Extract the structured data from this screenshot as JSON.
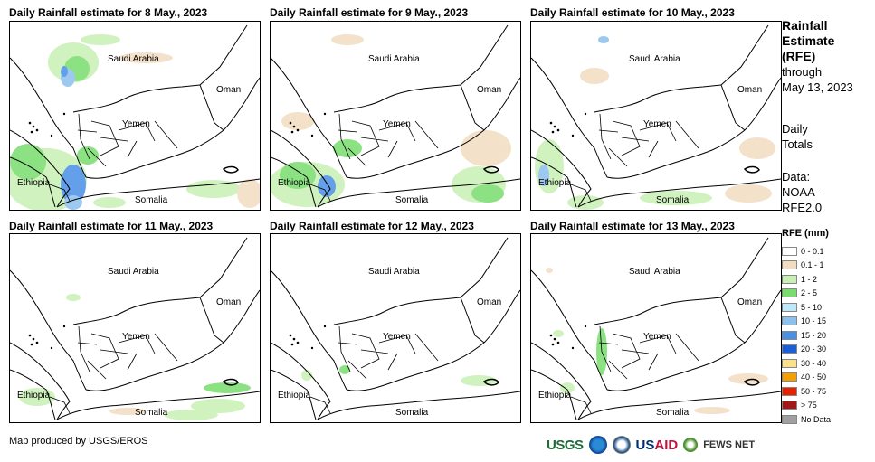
{
  "panels": [
    {
      "title": "Daily Rainfall estimate for 8 May., 2023"
    },
    {
      "title": "Daily Rainfall estimate for 9 May., 2023"
    },
    {
      "title": "Daily Rainfall estimate for 10 May., 2023"
    },
    {
      "title": "Daily Rainfall estimate for 11 May., 2023"
    },
    {
      "title": "Daily Rainfall estimate for 12 May., 2023"
    },
    {
      "title": "Daily Rainfall estimate for 13 May., 2023"
    }
  ],
  "map_labels": {
    "saudi": "Saudi Arabia",
    "oman": "Oman",
    "yemen": "Yemen",
    "ethiopia": "Ethiopia",
    "somalia": "Somalia"
  },
  "side": {
    "title1": "Rainfall",
    "title2": "Estimate",
    "title3": "(RFE)",
    "through": "through",
    "date": "May 13, 2023",
    "daily1": "Daily",
    "daily2": "Totals",
    "data1": "Data:",
    "data2": "NOAA-",
    "data3": "RFE2.0"
  },
  "legend": {
    "title": "RFE (mm)",
    "items": [
      {
        "label": "0 - 0.1",
        "color": "#ffffff"
      },
      {
        "label": "0.1 - 1",
        "color": "#f2dcc0"
      },
      {
        "label": "1 - 2",
        "color": "#c8f0b4"
      },
      {
        "label": "2 - 5",
        "color": "#78dc6e"
      },
      {
        "label": "5 - 10",
        "color": "#bfe8f8"
      },
      {
        "label": "10 - 15",
        "color": "#8cc0ee"
      },
      {
        "label": "15 - 20",
        "color": "#4a8fe6"
      },
      {
        "label": "20 - 30",
        "color": "#1e5ed6"
      },
      {
        "label": "30 - 40",
        "color": "#f8e08c"
      },
      {
        "label": "40 - 50",
        "color": "#f4a000"
      },
      {
        "label": "50 - 75",
        "color": "#e82000"
      },
      {
        "label": "> 75",
        "color": "#a01818"
      },
      {
        "label": "No Data",
        "color": "#a0a0a0"
      }
    ]
  },
  "credit": "Map produced by USGS/EROS",
  "logos": {
    "usgs": "USGS",
    "usaid_us": "US",
    "usaid_aid": "AID",
    "fews": "FEWS NET"
  }
}
